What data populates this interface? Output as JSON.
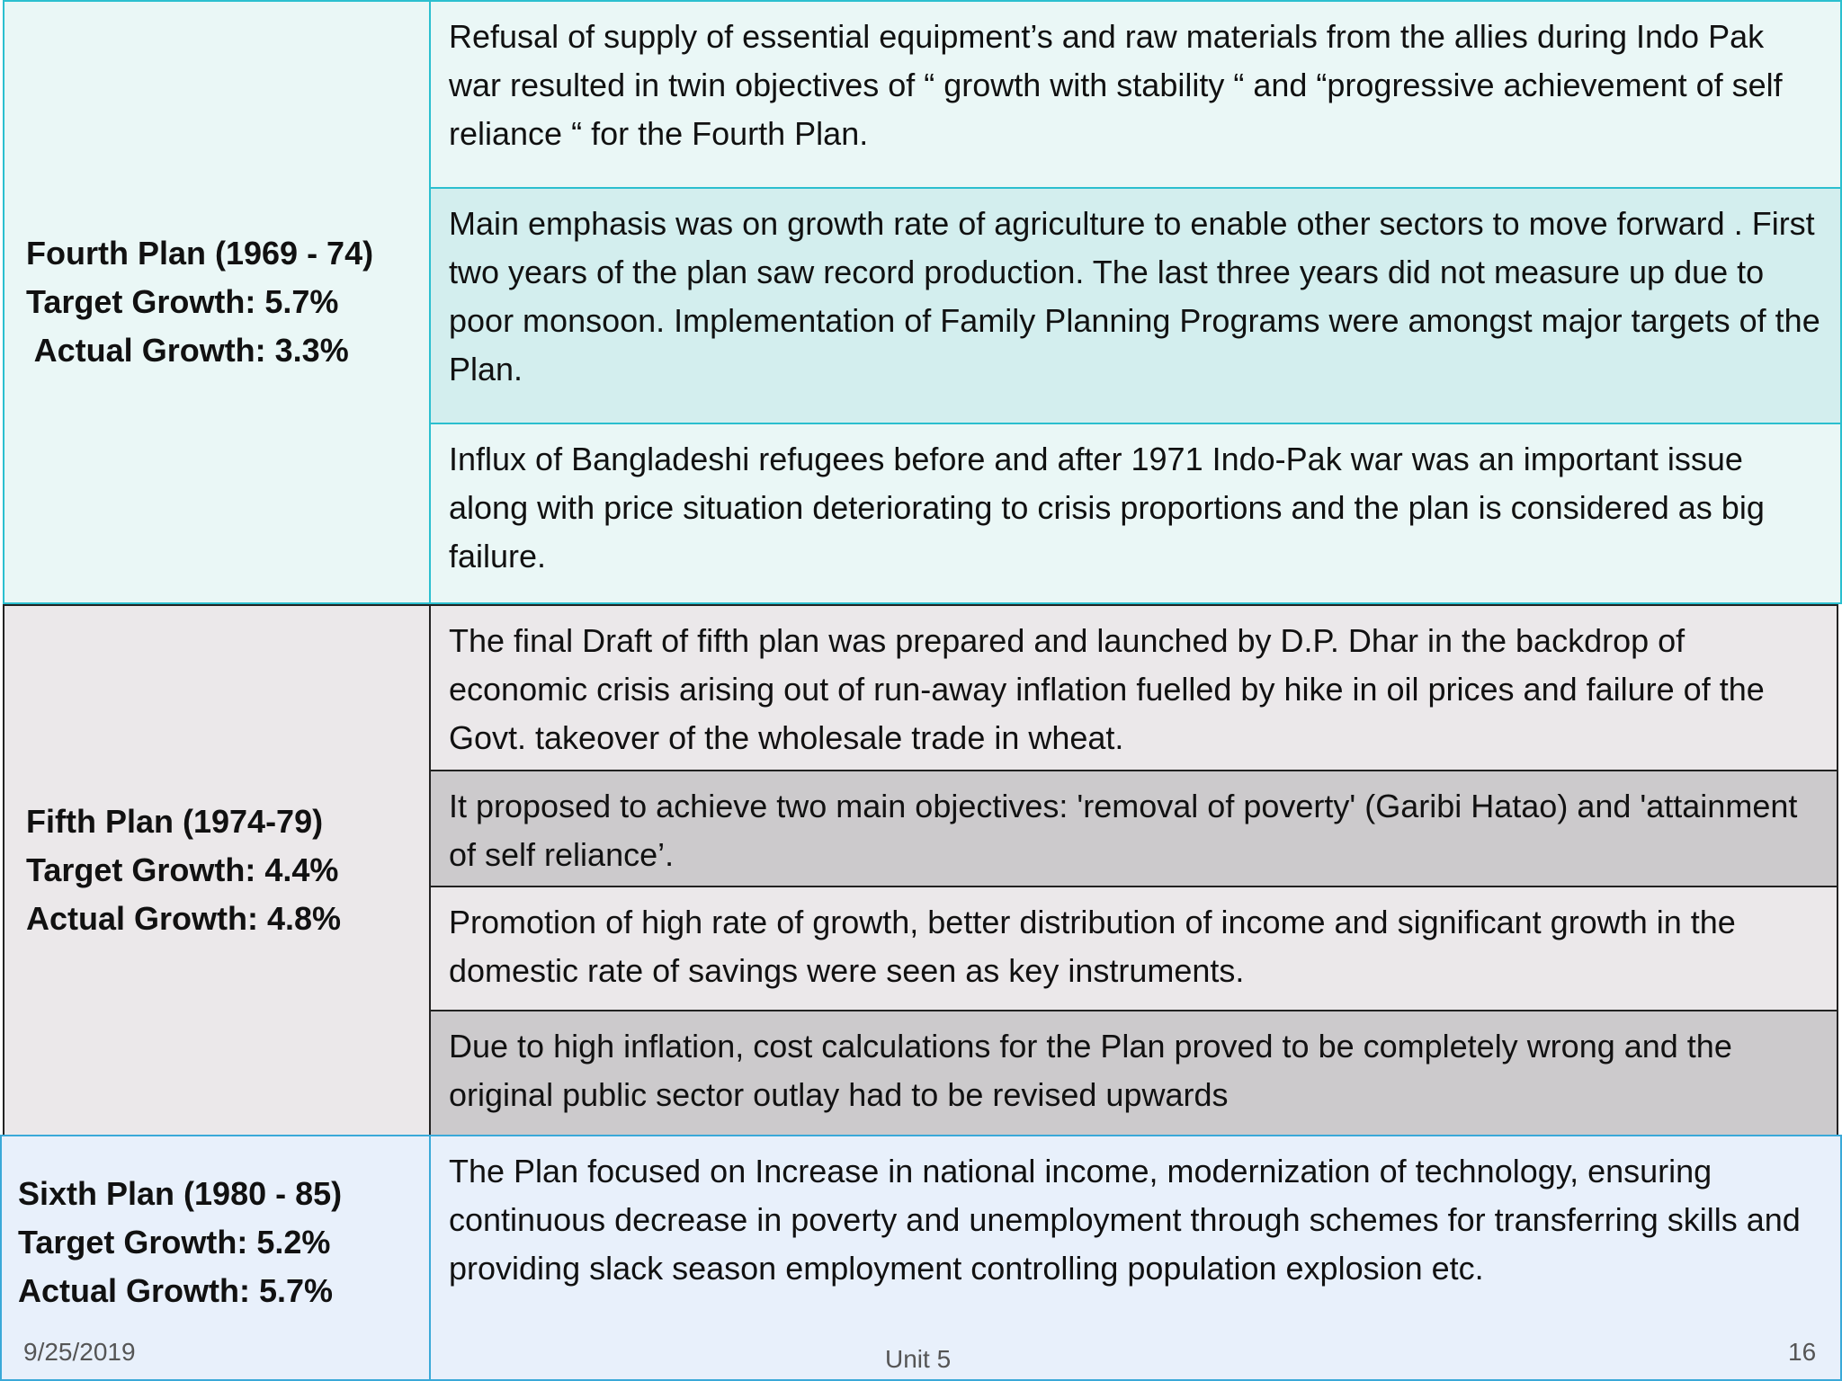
{
  "fourth_plan": {
    "title": "Fourth Plan (1969 - 74)",
    "target": "Target Growth: 5.7%",
    "actual": " Actual Growth: 3.3%",
    "points": [
      "Refusal of supply of essential equipment’s and raw materials from the allies during Indo Pak war resulted in twin objectives of “ growth with stability “ and “progressive achievement of self reliance “ for the Fourth Plan.",
      "Main emphasis was on growth rate of agriculture to enable other sectors to move forward . First two years of the plan saw record production. The last three years did not measure up due to poor monsoon. Implementation of Family Planning Programs were amongst major targets of the Plan.",
      "Influx of Bangladeshi refugees before and after 1971 Indo-Pak war was an important issue along with price situation deteriorating to crisis proportions and the plan is considered as big failure."
    ]
  },
  "fifth_plan": {
    "title": "Fifth Plan (1974-79)",
    "target": "Target Growth: 4.4%",
    "actual": "Actual Growth: 4.8%",
    "points": [
      "The final Draft of fifth plan was prepared and launched by D.P. Dhar in the backdrop of economic crisis arising out of run-away inflation fuelled by hike in oil prices  and failure of the Govt. takeover of the wholesale trade in wheat.",
      "It proposed to achieve two main objectives: 'removal of poverty' (Garibi Hatao) and 'attainment of self reliance’.",
      "Promotion of high rate of growth, better distribution of income and significant growth in the domestic rate of savings were seen as key instruments.",
      "Due to high inflation, cost calculations for the Plan proved to be completely wrong and the original public sector outlay had to be revised upwards"
    ]
  },
  "sixth_plan": {
    "title": "Sixth Plan (1980 - 85)",
    "target": "Target Growth: 5.2%",
    "actual": "Actual Growth: 5.7%",
    "points": [
      "The Plan focused on  Increase in national income, modernization of technology, ensuring continuous decrease in poverty and unemployment through schemes for transferring skills and providing slack season employment controlling population explosion etc."
    ]
  },
  "footer": {
    "date": "9/25/2019",
    "center": "Unit 5",
    "page": "16"
  }
}
